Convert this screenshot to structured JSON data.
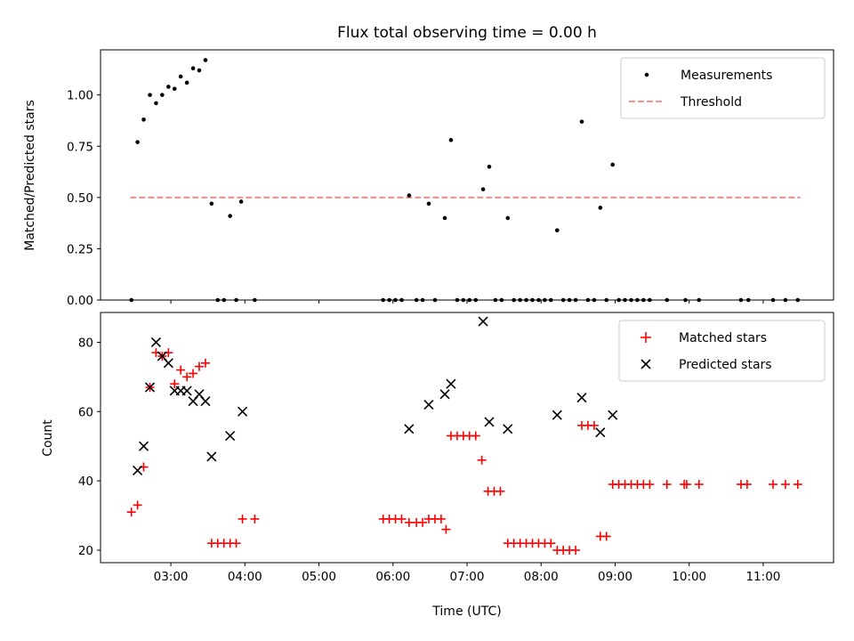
{
  "chart_data": [
    {
      "type": "scatter",
      "title": "Flux total observing time = 0.00 h",
      "xlabel": "",
      "ylabel": "Matched/Predicted stars",
      "ylim": [
        0,
        1.22
      ],
      "xlim_hours": [
        2.05,
        11.95
      ],
      "yticks": [
        "0.00",
        "0.25",
        "0.50",
        "0.75",
        "1.00"
      ],
      "legend_position": "top-right",
      "grid": false,
      "series": [
        {
          "name": "Measurements",
          "marker": "dot",
          "color": "#000000",
          "points": [
            [
              2.467,
              0.0
            ],
            [
              2.55,
              0.77
            ],
            [
              2.633,
              0.88
            ],
            [
              2.717,
              1.0
            ],
            [
              2.8,
              0.96
            ],
            [
              2.883,
              1.0
            ],
            [
              2.967,
              1.04
            ],
            [
              3.05,
              1.03
            ],
            [
              3.133,
              1.09
            ],
            [
              3.217,
              1.06
            ],
            [
              3.3,
              1.13
            ],
            [
              3.383,
              1.12
            ],
            [
              3.467,
              1.17
            ],
            [
              3.55,
              0.47
            ],
            [
              3.633,
              0.0
            ],
            [
              3.717,
              0.0
            ],
            [
              3.8,
              0.41
            ],
            [
              3.883,
              0.0
            ],
            [
              3.95,
              0.48
            ],
            [
              4.133,
              0.0
            ],
            [
              5.867,
              0.0
            ],
            [
              5.95,
              0.0
            ],
            [
              6.033,
              0.0
            ],
            [
              6.117,
              0.0
            ],
            [
              6.217,
              0.51
            ],
            [
              6.317,
              0.0
            ],
            [
              6.4,
              0.0
            ],
            [
              6.483,
              0.47
            ],
            [
              6.567,
              0.0
            ],
            [
              6.7,
              0.4
            ],
            [
              6.783,
              0.78
            ],
            [
              6.867,
              0.0
            ],
            [
              6.95,
              0.0
            ],
            [
              7.033,
              0.0
            ],
            [
              7.117,
              0.0
            ],
            [
              7.217,
              0.54
            ],
            [
              7.3,
              0.65
            ],
            [
              7.383,
              0.0
            ],
            [
              7.467,
              0.0
            ],
            [
              7.55,
              0.4
            ],
            [
              7.633,
              0.0
            ],
            [
              7.717,
              0.0
            ],
            [
              7.8,
              0.0
            ],
            [
              7.883,
              0.0
            ],
            [
              7.967,
              0.0
            ],
            [
              8.05,
              0.0
            ],
            [
              8.133,
              0.0
            ],
            [
              8.217,
              0.34
            ],
            [
              8.3,
              0.0
            ],
            [
              8.383,
              0.0
            ],
            [
              8.467,
              0.0
            ],
            [
              8.55,
              0.87
            ],
            [
              8.633,
              0.0
            ],
            [
              8.717,
              0.0
            ],
            [
              8.8,
              0.45
            ],
            [
              8.883,
              0.0
            ],
            [
              8.967,
              0.66
            ],
            [
              9.05,
              0.0
            ],
            [
              9.133,
              0.0
            ],
            [
              9.217,
              0.0
            ],
            [
              9.3,
              0.0
            ],
            [
              9.383,
              0.0
            ],
            [
              9.467,
              0.0
            ],
            [
              9.7,
              0.0
            ],
            [
              9.95,
              0.0
            ],
            [
              10.133,
              0.0
            ],
            [
              10.7,
              0.0
            ],
            [
              10.8,
              0.0
            ],
            [
              11.133,
              0.0
            ],
            [
              11.3,
              0.0
            ],
            [
              11.467,
              0.0
            ]
          ]
        },
        {
          "name": "Threshold",
          "style": "dashed-line",
          "color": "#ff8080",
          "x_range": [
            2.45,
            11.5
          ],
          "value": 0.5
        }
      ]
    },
    {
      "type": "scatter",
      "title": "",
      "xlabel": "Time (UTC)",
      "ylabel": "Count",
      "ylim": [
        16.4,
        88.6
      ],
      "xlim_hours": [
        2.05,
        11.95
      ],
      "yticks": [
        20,
        40,
        60,
        80
      ],
      "xticks": [
        "03:00",
        "04:00",
        "05:00",
        "06:00",
        "07:00",
        "08:00",
        "09:00",
        "10:00",
        "11:00"
      ],
      "legend_position": "top-right",
      "grid": false,
      "series": [
        {
          "name": "Matched stars",
          "marker": "plus",
          "color": "#ff0000",
          "points": [
            [
              2.467,
              31
            ],
            [
              2.55,
              33
            ],
            [
              2.633,
              44
            ],
            [
              2.717,
              67
            ],
            [
              2.8,
              77
            ],
            [
              2.883,
              76
            ],
            [
              2.967,
              77
            ],
            [
              3.05,
              68
            ],
            [
              3.133,
              72
            ],
            [
              3.217,
              70
            ],
            [
              3.3,
              71
            ],
            [
              3.383,
              73
            ],
            [
              3.467,
              74
            ],
            [
              3.55,
              22
            ],
            [
              3.633,
              22
            ],
            [
              3.717,
              22
            ],
            [
              3.8,
              22
            ],
            [
              3.883,
              22
            ],
            [
              3.967,
              29
            ],
            [
              4.133,
              29
            ],
            [
              5.867,
              29
            ],
            [
              5.95,
              29
            ],
            [
              6.033,
              29
            ],
            [
              6.117,
              29
            ],
            [
              6.217,
              28
            ],
            [
              6.317,
              28
            ],
            [
              6.4,
              28
            ],
            [
              6.483,
              29
            ],
            [
              6.567,
              29
            ],
            [
              6.65,
              29
            ],
            [
              6.717,
              26
            ],
            [
              6.783,
              53
            ],
            [
              6.867,
              53
            ],
            [
              6.95,
              53
            ],
            [
              7.033,
              53
            ],
            [
              7.117,
              53
            ],
            [
              7.2,
              46
            ],
            [
              7.283,
              37
            ],
            [
              7.367,
              37
            ],
            [
              7.45,
              37
            ],
            [
              7.55,
              22
            ],
            [
              7.633,
              22
            ],
            [
              7.717,
              22
            ],
            [
              7.8,
              22
            ],
            [
              7.883,
              22
            ],
            [
              7.967,
              22
            ],
            [
              8.05,
              22
            ],
            [
              8.133,
              22
            ],
            [
              8.217,
              20
            ],
            [
              8.3,
              20
            ],
            [
              8.383,
              20
            ],
            [
              8.467,
              20
            ],
            [
              8.55,
              56
            ],
            [
              8.633,
              56
            ],
            [
              8.717,
              56
            ],
            [
              8.8,
              24
            ],
            [
              8.883,
              24
            ],
            [
              8.967,
              39
            ],
            [
              9.05,
              39
            ],
            [
              9.133,
              39
            ],
            [
              9.217,
              39
            ],
            [
              9.3,
              39
            ],
            [
              9.383,
              39
            ],
            [
              9.467,
              39
            ],
            [
              9.7,
              39
            ],
            [
              9.933,
              39
            ],
            [
              9.967,
              39
            ],
            [
              10.133,
              39
            ],
            [
              10.7,
              39
            ],
            [
              10.783,
              39
            ],
            [
              11.133,
              39
            ],
            [
              11.3,
              39
            ],
            [
              11.467,
              39
            ]
          ]
        },
        {
          "name": "Predicted stars",
          "marker": "x",
          "color": "#000000",
          "points": [
            [
              2.55,
              43
            ],
            [
              2.633,
              50
            ],
            [
              2.717,
              67
            ],
            [
              2.8,
              80
            ],
            [
              2.883,
              76
            ],
            [
              2.967,
              74
            ],
            [
              3.05,
              66
            ],
            [
              3.133,
              66
            ],
            [
              3.217,
              66
            ],
            [
              3.3,
              63
            ],
            [
              3.383,
              65
            ],
            [
              3.467,
              63
            ],
            [
              3.55,
              47
            ],
            [
              3.8,
              53
            ],
            [
              3.967,
              60
            ],
            [
              6.217,
              55
            ],
            [
              6.483,
              62
            ],
            [
              6.7,
              65
            ],
            [
              6.783,
              68
            ],
            [
              7.217,
              86
            ],
            [
              7.3,
              57
            ],
            [
              7.55,
              55
            ],
            [
              8.217,
              59
            ],
            [
              8.55,
              64
            ],
            [
              8.8,
              54
            ],
            [
              8.967,
              59
            ]
          ]
        }
      ]
    }
  ]
}
